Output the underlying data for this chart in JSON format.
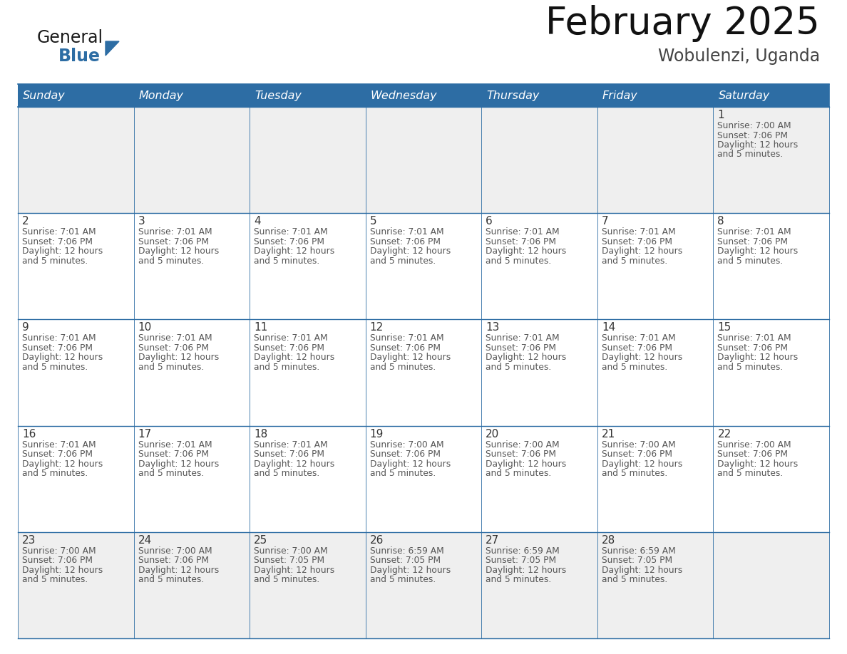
{
  "title": "February 2025",
  "subtitle": "Wobulenzi, Uganda",
  "header_color": "#2D6DA4",
  "header_text_color": "#FFFFFF",
  "border_color": "#2D6DA4",
  "row_bg_colors": [
    "#EFEFEF",
    "#FFFFFF",
    "#FFFFFF",
    "#FFFFFF",
    "#EFEFEF"
  ],
  "text_color": "#333333",
  "info_text_color": "#555555",
  "days_of_week": [
    "Sunday",
    "Monday",
    "Tuesday",
    "Wednesday",
    "Thursday",
    "Friday",
    "Saturday"
  ],
  "calendar_data": [
    [
      null,
      null,
      null,
      null,
      null,
      null,
      {
        "day": "1",
        "sunrise": "7:00 AM",
        "sunset": "7:06 PM",
        "daylight1": "12 hours",
        "daylight2": "and 5 minutes."
      }
    ],
    [
      {
        "day": "2",
        "sunrise": "7:01 AM",
        "sunset": "7:06 PM",
        "daylight1": "12 hours",
        "daylight2": "and 5 minutes."
      },
      {
        "day": "3",
        "sunrise": "7:01 AM",
        "sunset": "7:06 PM",
        "daylight1": "12 hours",
        "daylight2": "and 5 minutes."
      },
      {
        "day": "4",
        "sunrise": "7:01 AM",
        "sunset": "7:06 PM",
        "daylight1": "12 hours",
        "daylight2": "and 5 minutes."
      },
      {
        "day": "5",
        "sunrise": "7:01 AM",
        "sunset": "7:06 PM",
        "daylight1": "12 hours",
        "daylight2": "and 5 minutes."
      },
      {
        "day": "6",
        "sunrise": "7:01 AM",
        "sunset": "7:06 PM",
        "daylight1": "12 hours",
        "daylight2": "and 5 minutes."
      },
      {
        "day": "7",
        "sunrise": "7:01 AM",
        "sunset": "7:06 PM",
        "daylight1": "12 hours",
        "daylight2": "and 5 minutes."
      },
      {
        "day": "8",
        "sunrise": "7:01 AM",
        "sunset": "7:06 PM",
        "daylight1": "12 hours",
        "daylight2": "and 5 minutes."
      }
    ],
    [
      {
        "day": "9",
        "sunrise": "7:01 AM",
        "sunset": "7:06 PM",
        "daylight1": "12 hours",
        "daylight2": "and 5 minutes."
      },
      {
        "day": "10",
        "sunrise": "7:01 AM",
        "sunset": "7:06 PM",
        "daylight1": "12 hours",
        "daylight2": "and 5 minutes."
      },
      {
        "day": "11",
        "sunrise": "7:01 AM",
        "sunset": "7:06 PM",
        "daylight1": "12 hours",
        "daylight2": "and 5 minutes."
      },
      {
        "day": "12",
        "sunrise": "7:01 AM",
        "sunset": "7:06 PM",
        "daylight1": "12 hours",
        "daylight2": "and 5 minutes."
      },
      {
        "day": "13",
        "sunrise": "7:01 AM",
        "sunset": "7:06 PM",
        "daylight1": "12 hours",
        "daylight2": "and 5 minutes."
      },
      {
        "day": "14",
        "sunrise": "7:01 AM",
        "sunset": "7:06 PM",
        "daylight1": "12 hours",
        "daylight2": "and 5 minutes."
      },
      {
        "day": "15",
        "sunrise": "7:01 AM",
        "sunset": "7:06 PM",
        "daylight1": "12 hours",
        "daylight2": "and 5 minutes."
      }
    ],
    [
      {
        "day": "16",
        "sunrise": "7:01 AM",
        "sunset": "7:06 PM",
        "daylight1": "12 hours",
        "daylight2": "and 5 minutes."
      },
      {
        "day": "17",
        "sunrise": "7:01 AM",
        "sunset": "7:06 PM",
        "daylight1": "12 hours",
        "daylight2": "and 5 minutes."
      },
      {
        "day": "18",
        "sunrise": "7:01 AM",
        "sunset": "7:06 PM",
        "daylight1": "12 hours",
        "daylight2": "and 5 minutes."
      },
      {
        "day": "19",
        "sunrise": "7:00 AM",
        "sunset": "7:06 PM",
        "daylight1": "12 hours",
        "daylight2": "and 5 minutes."
      },
      {
        "day": "20",
        "sunrise": "7:00 AM",
        "sunset": "7:06 PM",
        "daylight1": "12 hours",
        "daylight2": "and 5 minutes."
      },
      {
        "day": "21",
        "sunrise": "7:00 AM",
        "sunset": "7:06 PM",
        "daylight1": "12 hours",
        "daylight2": "and 5 minutes."
      },
      {
        "day": "22",
        "sunrise": "7:00 AM",
        "sunset": "7:06 PM",
        "daylight1": "12 hours",
        "daylight2": "and 5 minutes."
      }
    ],
    [
      {
        "day": "23",
        "sunrise": "7:00 AM",
        "sunset": "7:06 PM",
        "daylight1": "12 hours",
        "daylight2": "and 5 minutes."
      },
      {
        "day": "24",
        "sunrise": "7:00 AM",
        "sunset": "7:06 PM",
        "daylight1": "12 hours",
        "daylight2": "and 5 minutes."
      },
      {
        "day": "25",
        "sunrise": "7:00 AM",
        "sunset": "7:05 PM",
        "daylight1": "12 hours",
        "daylight2": "and 5 minutes."
      },
      {
        "day": "26",
        "sunrise": "6:59 AM",
        "sunset": "7:05 PM",
        "daylight1": "12 hours",
        "daylight2": "and 5 minutes."
      },
      {
        "day": "27",
        "sunrise": "6:59 AM",
        "sunset": "7:05 PM",
        "daylight1": "12 hours",
        "daylight2": "and 5 minutes."
      },
      {
        "day": "28",
        "sunrise": "6:59 AM",
        "sunset": "7:05 PM",
        "daylight1": "12 hours",
        "daylight2": "and 5 minutes."
      },
      null
    ]
  ],
  "logo_color_general": "#1A1A1A",
  "logo_color_blue": "#2D6DA4",
  "logo_triangle_color": "#2D6DA4"
}
